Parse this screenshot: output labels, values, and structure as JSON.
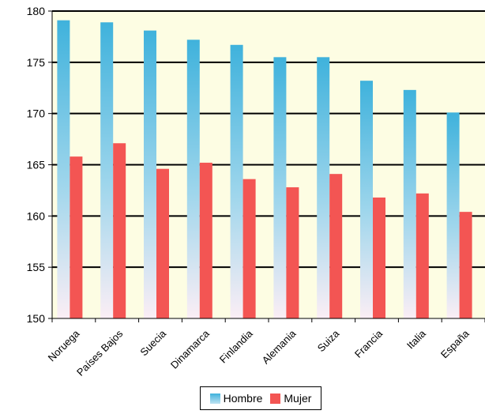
{
  "chart_data": {
    "type": "bar",
    "categories": [
      "Noruega",
      "Países Bajos",
      "Suecia",
      "Dinamarca",
      "Finlandia",
      "Alemania",
      "Suiza",
      "Francia",
      "Italia",
      "España"
    ],
    "series": [
      {
        "name": "Hombre",
        "values": [
          179.1,
          178.9,
          178.1,
          177.2,
          176.7,
          175.5,
          175.5,
          173.2,
          172.3,
          170.1
        ]
      },
      {
        "name": "Mujer",
        "values": [
          165.8,
          167.1,
          164.6,
          165.2,
          163.6,
          162.8,
          164.1,
          161.8,
          162.2,
          160.4
        ]
      }
    ],
    "yticks": [
      150,
      155,
      160,
      165,
      170,
      175,
      180
    ],
    "ylim": [
      150,
      180
    ],
    "grid": true,
    "legend_position": "bottom",
    "colors": {
      "Hombre": "#3fb2dc",
      "Mujer": "#f35553",
      "plot_background": "#fdfde3"
    }
  },
  "legend": {
    "hombre": "Hombre",
    "mujer": "Mujer"
  }
}
